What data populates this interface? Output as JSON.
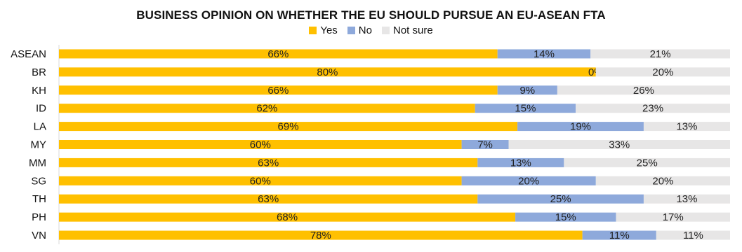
{
  "chart_data": {
    "type": "bar",
    "orientation": "horizontal",
    "stacked": "100%",
    "title": "BUSINESS OPINION ON WHETHER THE EU SHOULD PURSUE AN EU-ASEAN FTA",
    "categories": [
      "ASEAN",
      "BR",
      "KH",
      "ID",
      "LA",
      "MY",
      "MM",
      "SG",
      "TH",
      "PH",
      "VN"
    ],
    "series": [
      {
        "name": "Yes",
        "color": "#FFC000",
        "values": [
          66,
          80,
          66,
          62,
          69,
          60,
          63,
          60,
          63,
          68,
          78
        ]
      },
      {
        "name": "No",
        "color": "#8EA9DB",
        "values": [
          14,
          0,
          9,
          15,
          19,
          7,
          13,
          20,
          25,
          15,
          11
        ]
      },
      {
        "name": "Not sure",
        "color": "#E7E6E6",
        "values": [
          21,
          20,
          26,
          23,
          13,
          33,
          25,
          20,
          13,
          17,
          11
        ]
      }
    ],
    "value_suffix": "%",
    "legend_position": "top",
    "grid": false
  }
}
